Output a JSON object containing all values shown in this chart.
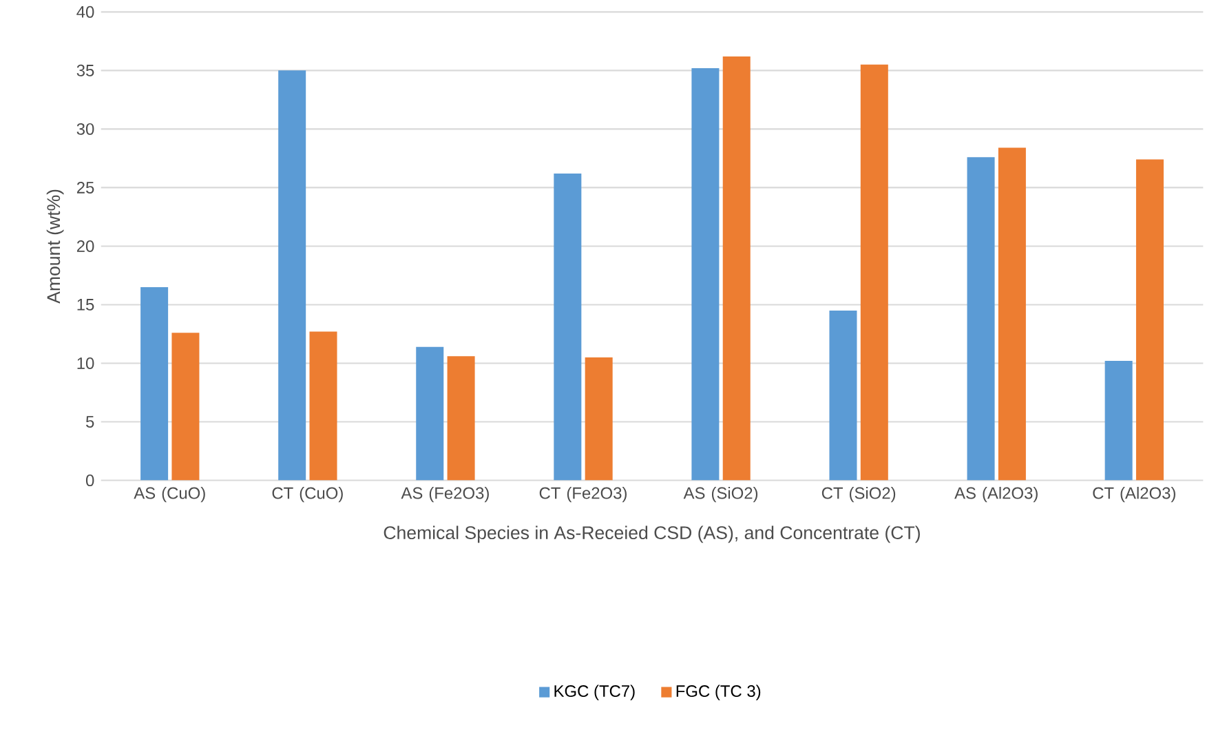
{
  "chart_data": {
    "type": "bar",
    "xlabel": "Chemical Species in As-Receied CSD (AS), and Concentrate (CT)",
    "ylabel": "Amount (wt%)",
    "categories": [
      "AS (CuO)",
      "CT (CuO)",
      "AS (Fe2O3)",
      "CT (Fe2O3)",
      "AS (SiO2)",
      "CT (SiO2)",
      "AS (Al2O3)",
      "CT (Al2O3)"
    ],
    "series": [
      {
        "name": "KGC (TC7)",
        "color": "#5b9bd5",
        "values": [
          16.5,
          35.0,
          11.4,
          26.2,
          35.2,
          14.5,
          27.6,
          10.2
        ]
      },
      {
        "name": "FGC (TC 3)",
        "color": "#ed7d31",
        "values": [
          12.6,
          12.7,
          10.6,
          10.5,
          36.2,
          35.5,
          28.4,
          27.4
        ]
      }
    ],
    "ylim": [
      0,
      40
    ],
    "yticks": [
      0,
      5,
      10,
      15,
      20,
      25,
      30,
      35,
      40
    ],
    "grid": "y",
    "legend": "bottom"
  }
}
